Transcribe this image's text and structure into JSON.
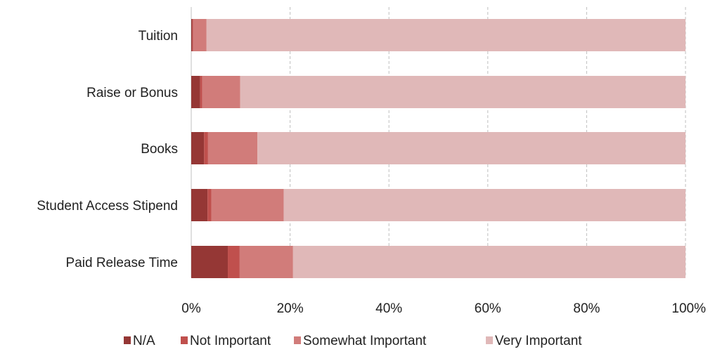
{
  "chart_data": {
    "type": "bar",
    "orientation": "horizontal",
    "stacked": "percent",
    "categories": [
      "Tuition",
      "Raise or Bonus",
      "Books",
      "Student Access Stipend",
      "Paid Release Time"
    ],
    "series": [
      {
        "name": "N/A",
        "color": "#953735",
        "values": [
          0.2,
          1.8,
          2.6,
          3.3,
          7.4
        ]
      },
      {
        "name": "Not Important",
        "color": "#c0504d",
        "values": [
          0.2,
          0.4,
          0.8,
          0.8,
          2.4
        ]
      },
      {
        "name": "Somewhat Important",
        "color": "#d17c7a",
        "values": [
          2.7,
          7.7,
          10.0,
          14.6,
          10.8
        ]
      },
      {
        "name": "Very Important",
        "color": "#e0b8b8",
        "values": [
          96.9,
          90.1,
          86.6,
          81.3,
          79.4
        ]
      }
    ],
    "xlim": [
      0,
      100
    ],
    "xticks": [
      "0%",
      "20%",
      "40%",
      "60%",
      "80%",
      "100%"
    ],
    "gridlines": "vertical dashed",
    "legend_position": "bottom"
  }
}
